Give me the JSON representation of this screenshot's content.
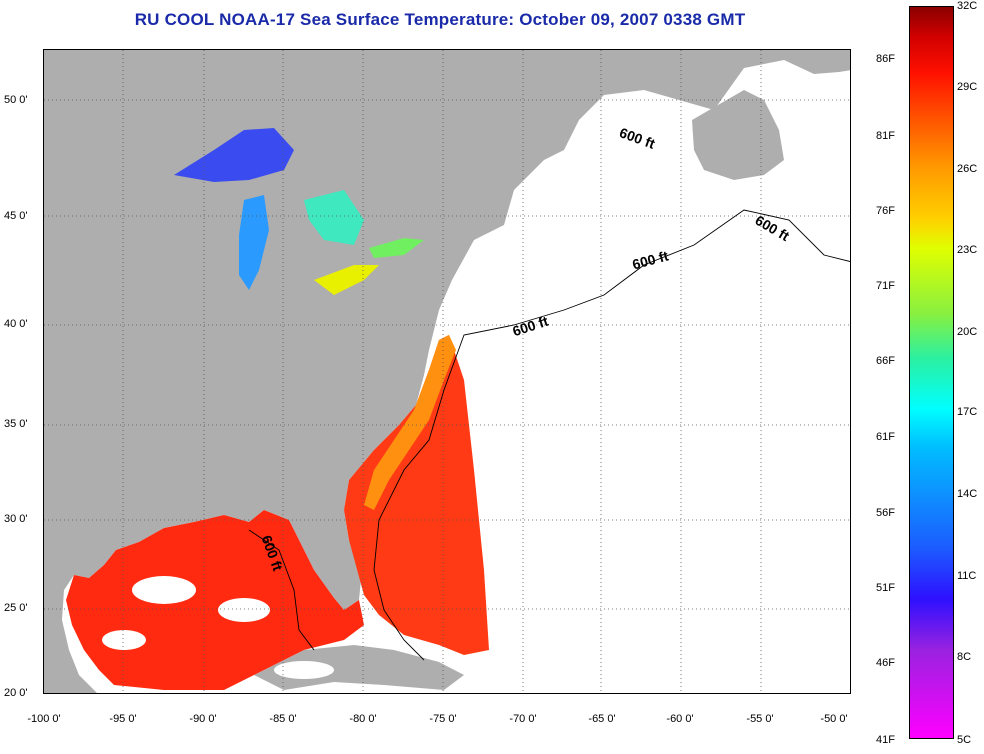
{
  "title": "RU COOL  NOAA-17  Sea Surface Temperature:  October 09, 2007 0338 GMT",
  "lat_labels": [
    "50 0'",
    "45 0'",
    "40 0'",
    "35 0'",
    "30 0'",
    "25 0'",
    "20 0'"
  ],
  "lon_labels": [
    "-100 0'",
    "-95 0'",
    "-90 0'",
    "-85 0'",
    "-80 0'",
    "-75 0'",
    "-70 0'",
    "-65 0'",
    "-60 0'",
    "-55 0'",
    "-50 0'"
  ],
  "isobath_labels": [
    "600 ft",
    "600 ft",
    "600 ft",
    "600 ft",
    "600 ft"
  ],
  "colorbar": {
    "celsius": [
      "32C",
      "29C",
      "26C",
      "23C",
      "20C",
      "17C",
      "14C",
      "11C",
      "8C",
      "5C"
    ],
    "fahrenheit": [
      "86F",
      "81F",
      "76F",
      "71F",
      "66F",
      "61F",
      "56F",
      "51F",
      "46F",
      "41F"
    ]
  },
  "colors": {
    "title": "#1a2aa8",
    "land": "#aeaeae",
    "no_data": "#ffffff",
    "warm_water": "#ff2a10",
    "shelf_water": "#ff9010"
  }
}
